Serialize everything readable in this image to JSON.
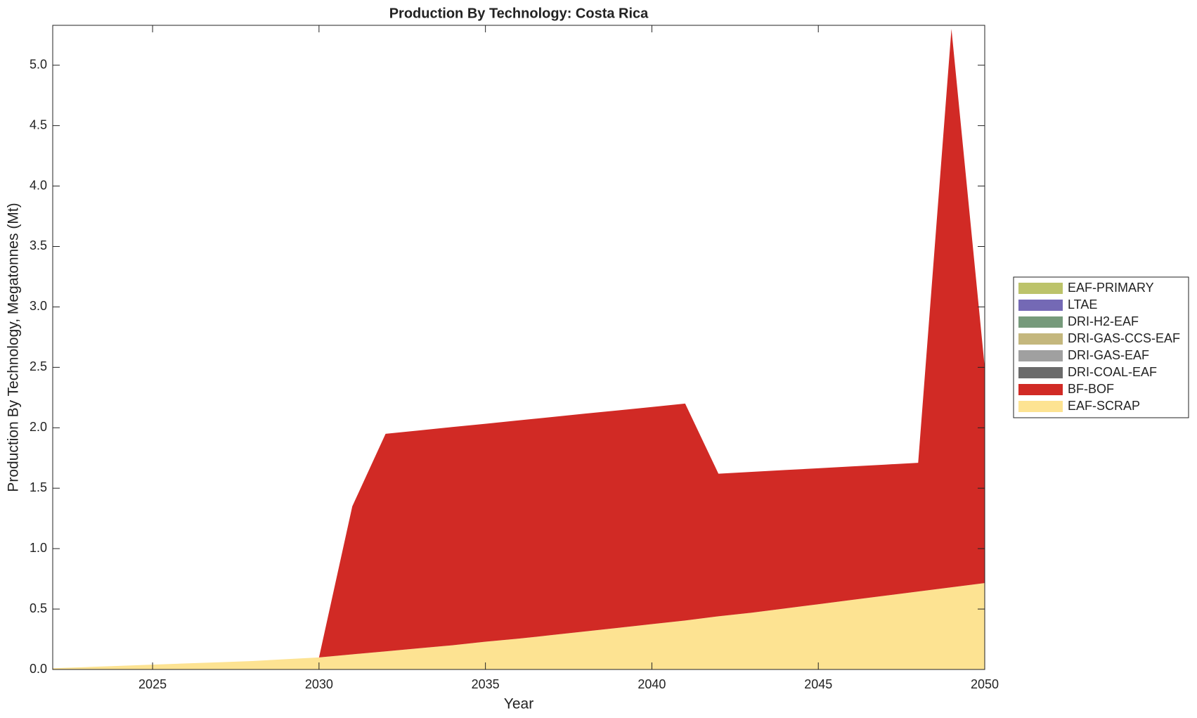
{
  "chart_data": {
    "type": "stacked-area",
    "title": "Production By Technology: Costa Rica",
    "x_label": "Year",
    "y_label": "Production By Technology, Megatonnes (Mt)",
    "x": [
      2022,
      2023,
      2024,
      2025,
      2026,
      2027,
      2028,
      2029,
      2030,
      2031,
      2032,
      2033,
      2034,
      2035,
      2036,
      2037,
      2038,
      2039,
      2040,
      2041,
      2042,
      2043,
      2044,
      2045,
      2046,
      2047,
      2048,
      2049,
      2050
    ],
    "xlim": [
      2022,
      2050
    ],
    "xticks": [
      2025,
      2030,
      2035,
      2040,
      2045,
      2050
    ],
    "ylim": [
      0,
      5.33
    ],
    "yticks": [
      {
        "value": 0,
        "label": "0.0"
      },
      0.5,
      {
        "value": 1,
        "label": "1.0"
      },
      1.5,
      {
        "value": 2,
        "label": "2.0"
      },
      2.5,
      {
        "value": 3,
        "label": "3.0"
      },
      3.5,
      {
        "value": 4,
        "label": "4.0"
      },
      4.5,
      {
        "value": 5,
        "label": "5.0"
      }
    ],
    "legend_position": "right",
    "series": [
      {
        "name": "EAF-SCRAP",
        "color": "#fde392",
        "values": [
          0.01,
          0.02,
          0.03,
          0.04,
          0.05,
          0.06,
          0.07,
          0.085,
          0.1,
          0.125,
          0.15,
          0.175,
          0.2,
          0.23,
          0.255,
          0.285,
          0.315,
          0.345,
          0.375,
          0.405,
          0.44,
          0.47,
          0.505,
          0.54,
          0.575,
          0.61,
          0.645,
          0.68,
          0.715
        ]
      },
      {
        "name": "BF-BOF",
        "color": "#d12a25",
        "values": [
          0,
          0,
          0,
          0,
          0,
          0,
          0,
          0,
          0,
          1.225,
          1.8,
          1.803,
          1.806,
          1.803,
          1.806,
          1.804,
          1.802,
          1.799,
          1.797,
          1.795,
          1.18,
          1.165,
          1.145,
          1.125,
          1.105,
          1.085,
          1.065,
          4.62,
          1.785
        ]
      },
      {
        "name": "DRI-COAL-EAF",
        "color": "#6b6b6b",
        "values": [
          0,
          0,
          0,
          0,
          0,
          0,
          0,
          0,
          0,
          0,
          0,
          0,
          0,
          0,
          0,
          0,
          0,
          0,
          0,
          0,
          0,
          0,
          0,
          0,
          0,
          0,
          0,
          0,
          0
        ]
      },
      {
        "name": "DRI-GAS-EAF",
        "color": "#a0a0a0",
        "values": [
          0,
          0,
          0,
          0,
          0,
          0,
          0,
          0,
          0,
          0,
          0,
          0,
          0,
          0,
          0,
          0,
          0,
          0,
          0,
          0,
          0,
          0,
          0,
          0,
          0,
          0,
          0,
          0,
          0
        ]
      },
      {
        "name": "DRI-GAS-CCS-EAF",
        "color": "#c4b77d",
        "values": [
          0,
          0,
          0,
          0,
          0,
          0,
          0,
          0,
          0,
          0,
          0,
          0,
          0,
          0,
          0,
          0,
          0,
          0,
          0,
          0,
          0,
          0,
          0,
          0,
          0,
          0,
          0,
          0,
          0
        ]
      },
      {
        "name": "DRI-H2-EAF",
        "color": "#769a7b",
        "values": [
          0,
          0,
          0,
          0,
          0,
          0,
          0,
          0,
          0,
          0,
          0,
          0,
          0,
          0,
          0,
          0,
          0,
          0,
          0,
          0,
          0,
          0,
          0,
          0,
          0,
          0,
          0,
          0,
          0
        ]
      },
      {
        "name": "LTAE",
        "color": "#7469b5",
        "values": [
          0,
          0,
          0,
          0,
          0,
          0,
          0,
          0,
          0,
          0,
          0,
          0,
          0,
          0,
          0,
          0,
          0,
          0,
          0,
          0,
          0,
          0,
          0,
          0,
          0,
          0,
          0,
          0,
          0
        ]
      },
      {
        "name": "EAF-PRIMARY",
        "color": "#bcc36a",
        "values": [
          0,
          0,
          0,
          0,
          0,
          0,
          0,
          0,
          0,
          0,
          0,
          0,
          0,
          0,
          0,
          0,
          0,
          0,
          0,
          0,
          0,
          0,
          0,
          0,
          0,
          0,
          0,
          0,
          0
        ]
      }
    ]
  }
}
